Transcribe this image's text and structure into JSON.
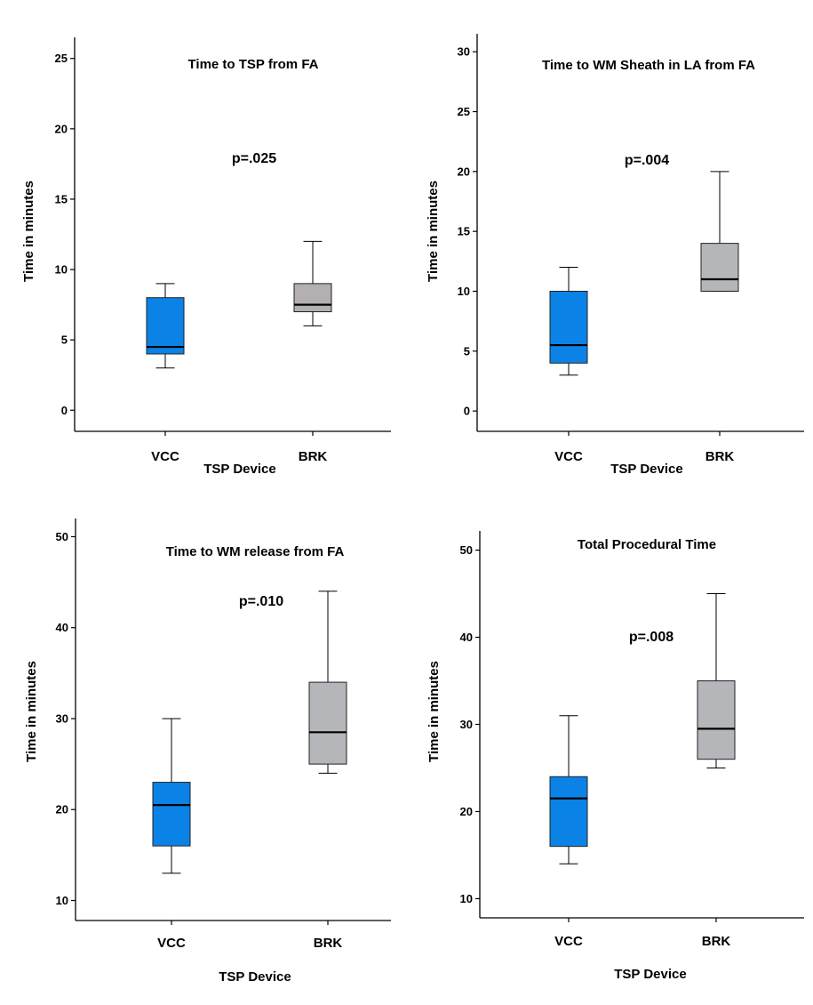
{
  "chart_data": [
    {
      "type": "boxplot",
      "title": "Time to TSP from FA",
      "annotation": "p=.025",
      "xlabel": "TSP Device",
      "ylabel": "Time in minutes",
      "ylim": [
        -1.5,
        26.5
      ],
      "yticks": [
        0,
        5,
        10,
        15,
        20,
        25
      ],
      "categories": [
        "VCC",
        "BRK"
      ],
      "boxes": [
        {
          "name": "VCC",
          "min": 3,
          "q1": 4,
          "median": 4.5,
          "q3": 8,
          "max": 9,
          "color": "#0b82e6"
        },
        {
          "name": "BRK",
          "min": 6,
          "q1": 7,
          "median": 7.5,
          "q3": 9,
          "max": 12,
          "color": "#b4b0b1"
        }
      ]
    },
    {
      "type": "boxplot",
      "title": "Time to WM Sheath in LA from FA",
      "annotation": "p=.004",
      "xlabel": "TSP Device",
      "ylabel": "Time in minutes",
      "ylim": [
        -1.7,
        31.5
      ],
      "yticks": [
        0,
        5,
        10,
        15,
        20,
        25,
        30
      ],
      "categories": [
        "VCC",
        "BRK"
      ],
      "boxes": [
        {
          "name": "VCC",
          "min": 3,
          "q1": 4,
          "median": 5.5,
          "q3": 10,
          "max": 12,
          "color": "#0b82e6"
        },
        {
          "name": "BRK",
          "min": 10,
          "q1": 10,
          "median": 11,
          "q3": 14,
          "max": 20,
          "color": "#b4b6b9"
        }
      ]
    },
    {
      "type": "boxplot",
      "title": "Time to WM release from FA",
      "annotation": "p=.010",
      "xlabel": "TSP Device",
      "ylabel": "Time in minutes",
      "ylim": [
        7.8,
        52.0
      ],
      "yticks": [
        10,
        20,
        30,
        40,
        50
      ],
      "categories": [
        "VCC",
        "BRK"
      ],
      "boxes": [
        {
          "name": "VCC",
          "min": 13,
          "q1": 16,
          "median": 20.5,
          "q3": 23,
          "max": 30,
          "color": "#0b82e6"
        },
        {
          "name": "BRK",
          "min": 24,
          "q1": 25,
          "median": 28.5,
          "q3": 34,
          "max": 44,
          "color": "#b4b6b9"
        }
      ]
    },
    {
      "type": "boxplot",
      "title": "Total Procedural Time",
      "annotation": "p=.008",
      "xlabel": "TSP Device",
      "ylabel": "Time in minutes",
      "ylim": [
        7.8,
        52.2
      ],
      "yticks": [
        10,
        20,
        30,
        40,
        50
      ],
      "categories": [
        "VCC",
        "BRK"
      ],
      "boxes": [
        {
          "name": "VCC",
          "min": 14,
          "q1": 16,
          "median": 21.5,
          "q3": 24,
          "max": 31,
          "color": "#0b82e6"
        },
        {
          "name": "BRK",
          "min": 25,
          "q1": 26,
          "median": 29.5,
          "q3": 35,
          "max": 45,
          "color": "#b4b6b9"
        }
      ]
    }
  ]
}
